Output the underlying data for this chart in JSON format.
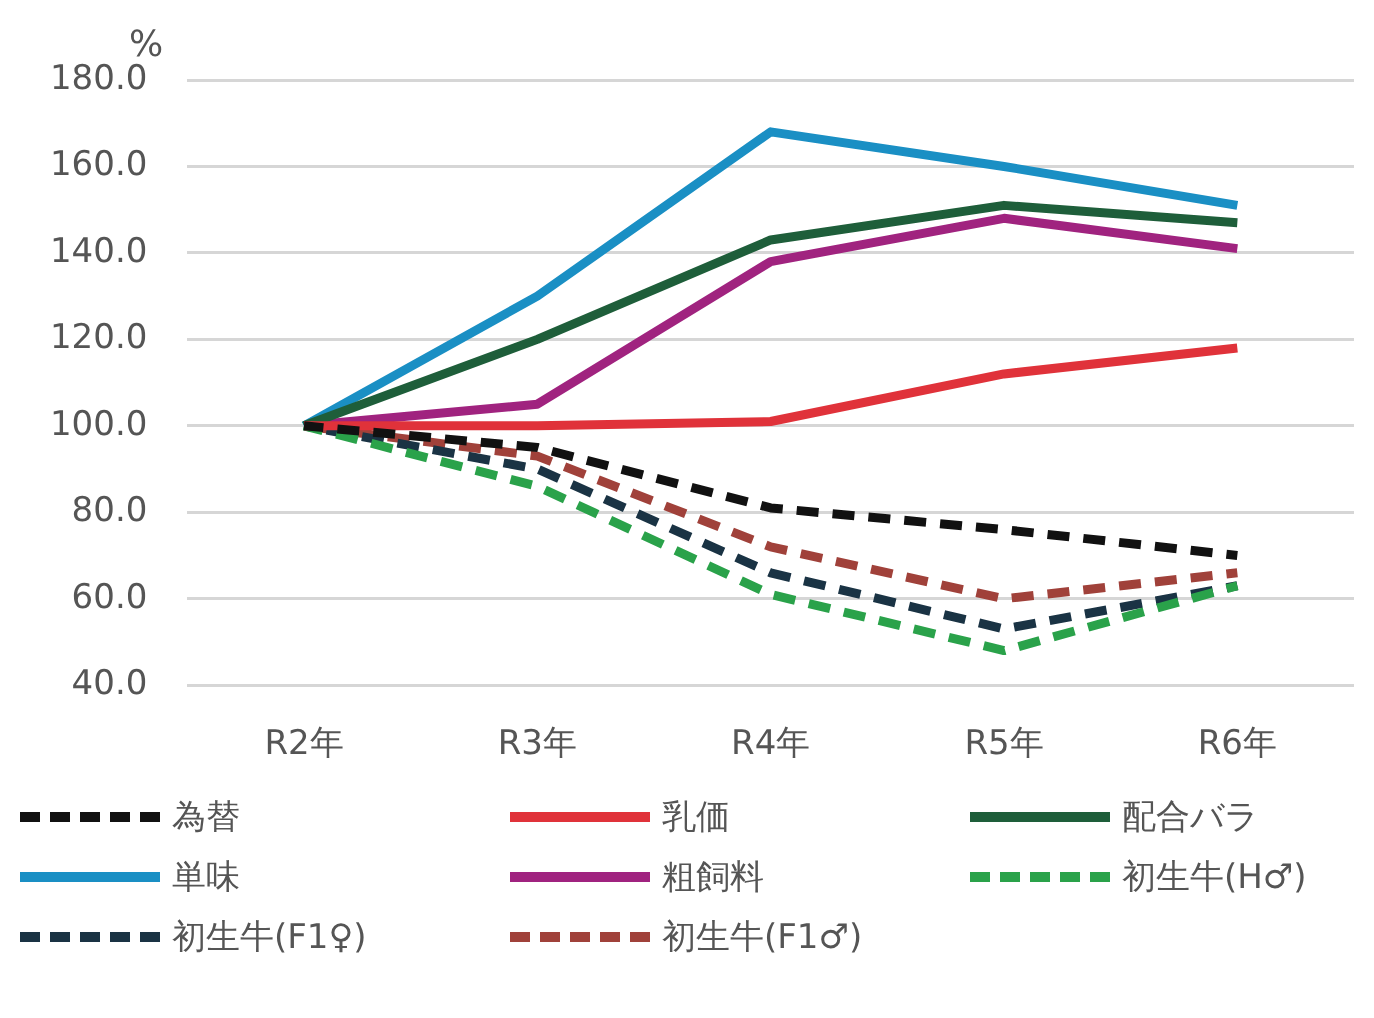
{
  "chart_data": {
    "type": "line",
    "ylabel": "%",
    "categories": [
      "R2年",
      "R3年",
      "R4年",
      "R5年",
      "R6年"
    ],
    "ylim": [
      40,
      180
    ],
    "yticks": [
      {
        "value": 40,
        "label": "40.0"
      },
      {
        "value": 60,
        "label": "60.0"
      },
      {
        "value": 80,
        "label": "80.0"
      },
      {
        "value": 100,
        "label": "100.0"
      },
      {
        "value": 120,
        "label": "120.0"
      },
      {
        "value": 140,
        "label": "140.0"
      },
      {
        "value": 160,
        "label": "160.0"
      },
      {
        "value": 180,
        "label": "180.0"
      }
    ],
    "grid": "y",
    "legend": "bottom",
    "marker": "none",
    "line_style": "solid",
    "series": [
      {
        "name": "為替",
        "color": "#111111",
        "line_style": "dashed",
        "values": [
          100,
          95,
          81,
          76,
          70
        ]
      },
      {
        "name": "乳価",
        "color": "#e0323a",
        "values": [
          100,
          100,
          101,
          112,
          118
        ]
      },
      {
        "name": "配合バラ",
        "color": "#1e5e3a",
        "values": [
          100,
          120,
          143,
          151,
          147
        ]
      },
      {
        "name": "単味",
        "color": "#1a8fc4",
        "values": [
          100,
          130,
          168,
          160,
          151
        ]
      },
      {
        "name": "粗飼料",
        "color": "#a0237f",
        "values": [
          100,
          105,
          138,
          148,
          141
        ]
      },
      {
        "name": "初生牛(H♂)",
        "color": "#2aa24a",
        "line_style": "dashed",
        "values": [
          100,
          86,
          61,
          48,
          63
        ]
      },
      {
        "name": "初生牛(F1♀)",
        "color": "#1a3344",
        "line_style": "dashed",
        "values": [
          100,
          90,
          66,
          53,
          63
        ]
      },
      {
        "name": "初生牛(F1♂)",
        "color": "#a0413a",
        "line_style": "dashed",
        "values": [
          100,
          93,
          72,
          60,
          66
        ]
      }
    ]
  }
}
